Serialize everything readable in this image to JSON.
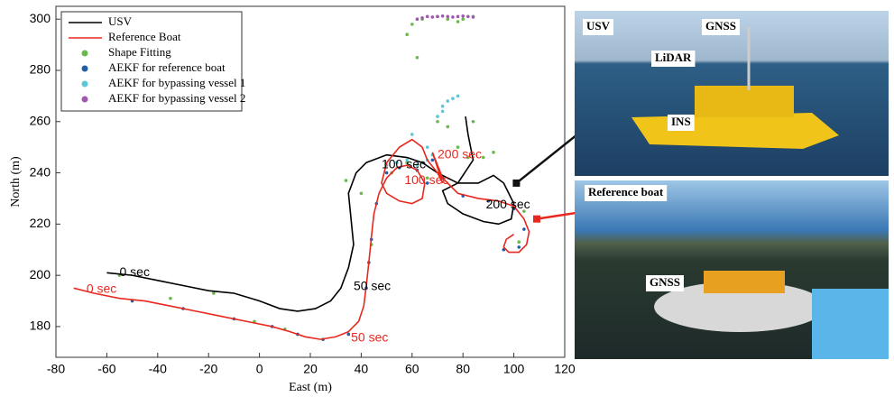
{
  "chart_data": {
    "type": "line",
    "xlabel": "East (m)",
    "ylabel": "North (m)",
    "xlim": [
      -80,
      120
    ],
    "ylim": [
      168,
      305
    ],
    "xticks": [
      -80,
      -60,
      -40,
      -20,
      0,
      20,
      40,
      60,
      80,
      100,
      120
    ],
    "yticks": [
      180,
      200,
      220,
      240,
      260,
      280,
      300
    ],
    "grid": false,
    "legend": "upper left",
    "series": [
      {
        "name": "USV",
        "type": "line",
        "color": "#000000",
        "x": [
          -60,
          -50,
          -40,
          -30,
          -20,
          -10,
          0,
          8,
          15,
          22,
          28,
          32,
          35,
          37,
          36,
          35,
          38,
          42,
          50,
          58,
          64,
          70,
          78,
          86,
          92,
          96,
          100,
          99,
          94,
          88,
          80,
          74,
          72,
          78,
          84,
          82,
          81
        ],
        "y": [
          201,
          200,
          198,
          196,
          194,
          193,
          190,
          187,
          186,
          187,
          190,
          195,
          203,
          212,
          222,
          232,
          240,
          244,
          247,
          246,
          244,
          240,
          236,
          236,
          239,
          236,
          228,
          222,
          220,
          221,
          224,
          228,
          233,
          236,
          245,
          255,
          262
        ]
      },
      {
        "name": "Reference Boat",
        "type": "line",
        "color": "#e8281e",
        "x": [
          -73,
          -65,
          -55,
          -45,
          -35,
          -25,
          -15,
          -5,
          5,
          12,
          18,
          24,
          30,
          35,
          39,
          41,
          42,
          43,
          44,
          45,
          47,
          50,
          54,
          58,
          62,
          65,
          64,
          60,
          55,
          50,
          48,
          50,
          55,
          60,
          64,
          66,
          70,
          72,
          70,
          68,
          72,
          78,
          86,
          94,
          100,
          104,
          106,
          105,
          102,
          98,
          96,
          97,
          100
        ],
        "y": [
          195,
          193,
          191,
          190,
          188,
          186,
          184,
          182,
          180,
          178,
          176,
          175,
          176,
          178,
          182,
          188,
          196,
          205,
          215,
          224,
          232,
          238,
          242,
          243,
          241,
          236,
          230,
          228,
          229,
          232,
          236,
          244,
          250,
          253,
          250,
          245,
          240,
          236,
          242,
          248,
          238,
          232,
          230,
          229,
          227,
          222,
          217,
          212,
          209,
          209,
          211,
          214,
          216
        ]
      },
      {
        "name": "Shape Fitting",
        "type": "scatter",
        "color": "#6ab94c",
        "x": [
          -55,
          -35,
          -18,
          -2,
          10,
          34,
          40,
          44,
          52,
          58,
          62,
          66,
          70,
          74,
          78,
          82,
          84,
          88,
          92,
          96,
          102,
          104,
          58,
          60,
          62,
          64,
          70,
          74,
          78,
          80,
          84
        ],
        "y": [
          200,
          191,
          193,
          182,
          179,
          237,
          232,
          212,
          240,
          244,
          243,
          238,
          260,
          258,
          250,
          246,
          260,
          246,
          248,
          210,
          213,
          225,
          294,
          298,
          285,
          300,
          301,
          300,
          299,
          300,
          301
        ]
      },
      {
        "name": "AEKF for reference boat",
        "type": "scatter",
        "color": "#1f5fa8",
        "x": [
          -50,
          -30,
          -10,
          5,
          15,
          25,
          35,
          42,
          43,
          44,
          46,
          50,
          55,
          62,
          66,
          68,
          72,
          80,
          90,
          100,
          104,
          102,
          96
        ],
        "y": [
          190,
          187,
          183,
          180,
          177,
          175,
          177,
          195,
          205,
          214,
          228,
          240,
          242,
          241,
          236,
          245,
          238,
          231,
          229,
          226,
          218,
          211,
          210
        ]
      },
      {
        "name": "AEKF for bypassing vessel 1",
        "type": "scatter",
        "color": "#5bc7d6",
        "x": [
          50,
          54,
          58,
          62,
          64,
          66,
          68,
          70,
          72,
          74,
          76,
          78,
          60,
          66,
          72
        ],
        "y": [
          243,
          244,
          245,
          243,
          244,
          245,
          247,
          262,
          266,
          268,
          269,
          270,
          255,
          250,
          264
        ]
      },
      {
        "name": "AEKF for bypassing vessel 2",
        "type": "scatter",
        "color": "#a057b0",
        "x": [
          62,
          64,
          66,
          68,
          70,
          72,
          74,
          76,
          78,
          80,
          82,
          84
        ],
        "y": [
          300,
          300.5,
          301,
          300.8,
          301,
          301.2,
          301,
          300.8,
          301,
          301.2,
          301,
          300.8
        ]
      }
    ],
    "annotations": [
      {
        "text": "0 sec",
        "x": -55,
        "y": 201,
        "color": "#000000"
      },
      {
        "text": "0 sec",
        "x": -68,
        "y": 194.5,
        "color": "#e8281e"
      },
      {
        "text": "50 sec",
        "x": 37,
        "y": 195.5,
        "color": "#000000"
      },
      {
        "text": "50 sec",
        "x": 36,
        "y": 175.5,
        "color": "#e8281e"
      },
      {
        "text": "100 sec",
        "x": 48,
        "y": 243,
        "color": "#000000"
      },
      {
        "text": "100 sec",
        "x": 57,
        "y": 237,
        "color": "#e8281e"
      },
      {
        "text": "200 sec",
        "x": 70,
        "y": 247,
        "color": "#e8281e"
      },
      {
        "text": "200 sec",
        "x": 89,
        "y": 227.5,
        "color": "#000000"
      }
    ]
  },
  "photos": [
    {
      "labels": [
        "USV",
        "GNSS",
        "LiDAR",
        "INS"
      ]
    },
    {
      "labels": [
        "Reference boat",
        "GNSS"
      ]
    }
  ]
}
